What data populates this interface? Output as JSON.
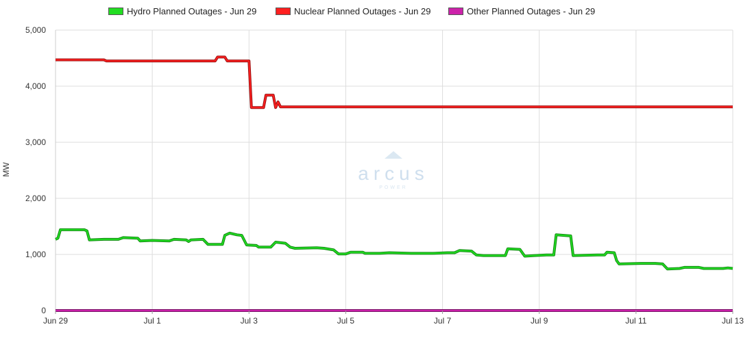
{
  "chart_data": {
    "type": "line",
    "ylabel": "MW",
    "ylim": [
      0,
      5000
    ],
    "y_ticks": [
      0,
      1000,
      2000,
      3000,
      4000,
      5000
    ],
    "y_tick_labels": [
      "0",
      "1,000",
      "2,000",
      "3,000",
      "4,000",
      "5,000"
    ],
    "x_domain": [
      "2025-06-29",
      "2025-07-13"
    ],
    "x_ticks": [
      "Jun 29",
      "Jul 1",
      "Jul 3",
      "Jul 5",
      "Jul 7",
      "Jul 9",
      "Jul 11",
      "Jul 13"
    ],
    "grid": true,
    "legend_position": "top",
    "watermark": "arcus",
    "watermark_sub": "POWER",
    "series": [
      {
        "name": "Hydro Planned Outages - Jun 29",
        "color": "#22dd22",
        "points": [
          [
            0,
            1270
          ],
          [
            0.05,
            1290
          ],
          [
            0.1,
            1440
          ],
          [
            0.6,
            1440
          ],
          [
            0.65,
            1420
          ],
          [
            0.7,
            1260
          ],
          [
            1.0,
            1270
          ],
          [
            1.3,
            1270
          ],
          [
            1.4,
            1300
          ],
          [
            1.7,
            1290
          ],
          [
            1.75,
            1240
          ],
          [
            2.0,
            1250
          ],
          [
            2.35,
            1240
          ],
          [
            2.45,
            1270
          ],
          [
            2.7,
            1260
          ],
          [
            2.75,
            1230
          ],
          [
            2.8,
            1260
          ],
          [
            3.05,
            1270
          ],
          [
            3.15,
            1180
          ],
          [
            3.45,
            1180
          ],
          [
            3.5,
            1340
          ],
          [
            3.6,
            1380
          ],
          [
            3.75,
            1350
          ],
          [
            3.85,
            1340
          ],
          [
            3.95,
            1170
          ],
          [
            4.15,
            1160
          ],
          [
            4.2,
            1130
          ],
          [
            4.45,
            1130
          ],
          [
            4.55,
            1220
          ],
          [
            4.75,
            1200
          ],
          [
            4.85,
            1130
          ],
          [
            4.95,
            1110
          ],
          [
            5.4,
            1120
          ],
          [
            5.55,
            1110
          ],
          [
            5.75,
            1080
          ],
          [
            5.85,
            1010
          ],
          [
            6.0,
            1010
          ],
          [
            6.1,
            1040
          ],
          [
            6.35,
            1040
          ],
          [
            6.4,
            1020
          ],
          [
            6.7,
            1020
          ],
          [
            6.9,
            1030
          ],
          [
            7.35,
            1020
          ],
          [
            7.8,
            1020
          ],
          [
            8.1,
            1030
          ],
          [
            8.25,
            1030
          ],
          [
            8.35,
            1070
          ],
          [
            8.6,
            1060
          ],
          [
            8.7,
            990
          ],
          [
            8.85,
            980
          ],
          [
            9.3,
            980
          ],
          [
            9.35,
            1100
          ],
          [
            9.6,
            1090
          ],
          [
            9.7,
            970
          ],
          [
            9.9,
            980
          ],
          [
            10.15,
            990
          ],
          [
            10.3,
            990
          ],
          [
            10.35,
            1350
          ],
          [
            10.65,
            1330
          ],
          [
            10.7,
            980
          ],
          [
            11.2,
            990
          ],
          [
            11.35,
            990
          ],
          [
            11.4,
            1040
          ],
          [
            11.55,
            1030
          ],
          [
            11.6,
            890
          ],
          [
            11.65,
            830
          ],
          [
            12.1,
            840
          ],
          [
            12.4,
            840
          ],
          [
            12.55,
            830
          ],
          [
            12.65,
            740
          ],
          [
            12.9,
            750
          ],
          [
            13.0,
            770
          ],
          [
            13.3,
            770
          ],
          [
            13.4,
            750
          ],
          [
            13.8,
            750
          ],
          [
            13.9,
            760
          ],
          [
            14.0,
            750
          ]
        ]
      },
      {
        "name": "Nuclear Planned Outages - Jun 29",
        "color": "#ff2020",
        "points": [
          [
            0,
            4470
          ],
          [
            1.0,
            4470
          ],
          [
            1.05,
            4450
          ],
          [
            3.3,
            4450
          ],
          [
            3.35,
            4520
          ],
          [
            3.5,
            4520
          ],
          [
            3.55,
            4450
          ],
          [
            4.0,
            4450
          ],
          [
            4.05,
            3620
          ],
          [
            4.3,
            3620
          ],
          [
            4.35,
            3840
          ],
          [
            4.5,
            3840
          ],
          [
            4.55,
            3620
          ],
          [
            4.6,
            3720
          ],
          [
            4.65,
            3630
          ],
          [
            14.0,
            3630
          ]
        ]
      },
      {
        "name": "Other Planned Outages - Jun 29",
        "color": "#cc22aa",
        "points": [
          [
            0,
            0
          ],
          [
            14.0,
            0
          ]
        ]
      }
    ]
  }
}
